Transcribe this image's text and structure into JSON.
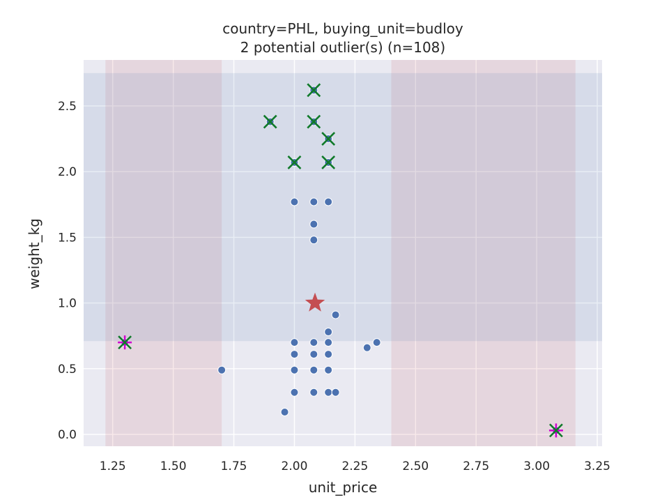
{
  "chart_data": {
    "type": "scatter",
    "title": "country=PHL, buying_unit=budloy",
    "subtitle": "2 potential outlier(s) (n=108)",
    "xlabel": "unit_price",
    "ylabel": "weight_kg",
    "xlim": [
      1.13,
      3.27
    ],
    "ylim": [
      -0.09,
      2.85
    ],
    "xticks": [
      1.25,
      1.5,
      1.75,
      2.0,
      2.25,
      2.5,
      2.75,
      3.0,
      3.25
    ],
    "xtick_labels": [
      "1.25",
      "1.50",
      "1.75",
      "2.00",
      "2.25",
      "2.50",
      "2.75",
      "3.00",
      "3.25"
    ],
    "yticks": [
      0.0,
      0.5,
      1.0,
      1.5,
      2.0,
      2.5
    ],
    "ytick_labels": [
      "0.0",
      "0.5",
      "1.0",
      "1.5",
      "2.0",
      "2.5"
    ],
    "grid": true,
    "shaded_bands": {
      "x_bands": [
        {
          "x": [
            1.22,
            1.7
          ],
          "color": "#c44e52"
        },
        {
          "x": [
            2.4,
            3.16
          ],
          "color": "#c44e52"
        }
      ],
      "y_bands": [
        {
          "y": [
            0.71,
            2.75
          ],
          "color": "#4c72b0"
        }
      ]
    },
    "points": {
      "color": "#4c72b0",
      "x": [
        2.0,
        2.08,
        2.14,
        2.08,
        2.08,
        2.17,
        2.14,
        2.0,
        2.08,
        2.14,
        2.0,
        2.08,
        2.14,
        2.0,
        2.08,
        2.14,
        2.0,
        2.08,
        2.14,
        2.17,
        1.96,
        1.7,
        2.3,
        2.34,
        1.3,
        3.08,
        2.08,
        1.9,
        2.08,
        2.14,
        2.0,
        2.14
      ],
      "y": [
        1.77,
        1.77,
        1.77,
        1.6,
        1.48,
        0.91,
        0.78,
        0.7,
        0.7,
        0.7,
        0.61,
        0.61,
        0.61,
        0.49,
        0.49,
        0.49,
        0.32,
        0.32,
        0.32,
        0.32,
        0.17,
        0.49,
        0.66,
        0.7,
        0.7,
        0.03,
        2.62,
        2.38,
        2.38,
        2.25,
        2.07,
        2.07
      ]
    },
    "x_markers": {
      "color": "#107a2a",
      "x": [
        2.08,
        1.9,
        2.08,
        2.14,
        2.0,
        2.14,
        1.3,
        3.08
      ],
      "y": [
        2.62,
        2.38,
        2.38,
        2.25,
        2.07,
        2.07,
        0.7,
        0.03
      ]
    },
    "plus_markers": {
      "color": "#d000d0",
      "x": [
        1.3,
        3.08
      ],
      "y": [
        0.7,
        0.03
      ]
    },
    "star_marker": {
      "color": "#c44e52",
      "x": 2.085,
      "y": 1.0
    }
  }
}
